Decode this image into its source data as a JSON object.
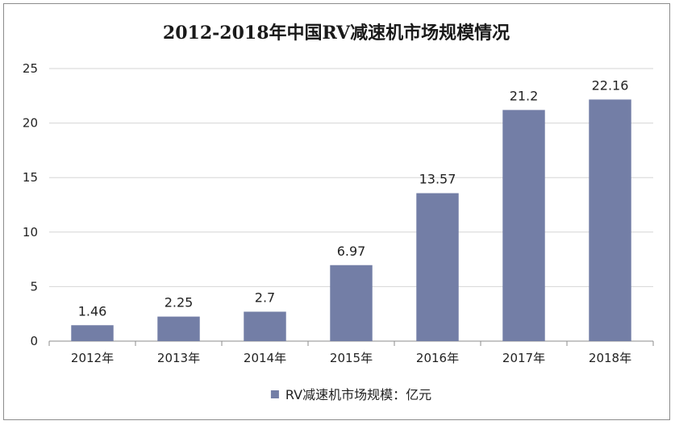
{
  "chart_data": {
    "type": "bar",
    "title": "2012-2018年中国RV减速机市场规模情况",
    "categories": [
      "2012年",
      "2013年",
      "2014年",
      "2015年",
      "2016年",
      "2017年",
      "2018年"
    ],
    "series": [
      {
        "name": "RV减速机市场规模：亿元",
        "values": [
          1.46,
          2.25,
          2.7,
          6.97,
          13.57,
          21.2,
          22.16
        ],
        "labels": [
          "1.46",
          "2.25",
          "2.7",
          "6.97",
          "13.57",
          "21.2",
          "22.16"
        ],
        "color": "#737ea6"
      }
    ],
    "ylim": [
      0,
      25
    ],
    "yticks": [
      0,
      5,
      10,
      15,
      20,
      25
    ],
    "grid": true,
    "legend": "bottom-center",
    "xlabel": "",
    "ylabel": ""
  }
}
